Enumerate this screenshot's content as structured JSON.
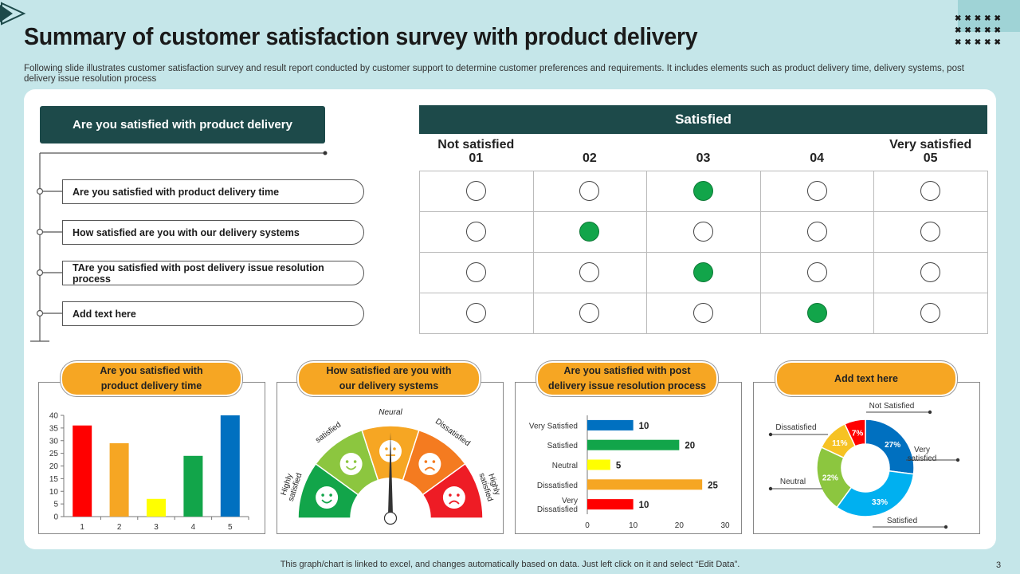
{
  "title": "Summary of customer satisfaction survey with product delivery",
  "subtitle": "Following slide illustrates customer satisfaction survey and result report conducted by customer support to determine customer preferences and requirements. It includes elements such as product delivery time, delivery systems, post delivery issue resolution process",
  "footer": "This graph/chart is linked to excel, and changes automatically based on data. Just left click on it and select “Edit Data”.",
  "page_number": "3",
  "survey": {
    "header": "Are you satisfied with product delivery",
    "questions": [
      "Are you satisfied with product delivery time",
      "How satisfied are you with our delivery systems",
      "TAre you satisfied with post delivery issue resolution process",
      "Add text here"
    ],
    "satisfied_header": "Satisfied",
    "scale": [
      {
        "label": "Not satisfied",
        "num": "01"
      },
      {
        "label": "",
        "num": "02"
      },
      {
        "label": "",
        "num": "03"
      },
      {
        "label": "",
        "num": "04"
      },
      {
        "label": "Very satisfied",
        "num": "05"
      }
    ],
    "selected": [
      3,
      2,
      3,
      4
    ],
    "selected_color": "#12a54a"
  },
  "panels": {
    "bar": {
      "pill": "Are you satisfied with\nproduct delivery time"
    },
    "gauge": {
      "pill": "How satisfied are you with\nour delivery systems"
    },
    "hbar": {
      "pill": "Are you satisfied with post\ndelivery issue resolution process"
    },
    "donut": {
      "pill": "Add text here"
    }
  },
  "chart_data": [
    {
      "type": "bar",
      "categories": [
        "1",
        "2",
        "3",
        "4",
        "5"
      ],
      "values": [
        36,
        29,
        7,
        24,
        40
      ],
      "colors": [
        "#ff0000",
        "#f6a623",
        "#ffff00",
        "#12a54a",
        "#0070c0"
      ],
      "ylim": [
        0,
        40
      ],
      "yticks": [
        0,
        5,
        10,
        15,
        20,
        25,
        30,
        35,
        40
      ]
    },
    {
      "type": "gauge",
      "segments": [
        {
          "label": "Highly satisfied",
          "color": "#12a54a",
          "face": "happy"
        },
        {
          "label": "satisfied",
          "color": "#8cc63f",
          "face": "happy"
        },
        {
          "label": "Neural",
          "color": "#f6a623",
          "face": "neutral"
        },
        {
          "label": "Dissatisfied",
          "color": "#f47b20",
          "face": "sad"
        },
        {
          "label": "Highly satisfied",
          "color": "#ee1c25",
          "face": "sad"
        }
      ],
      "needle_position": 2.5
    },
    {
      "type": "bar",
      "orientation": "horizontal",
      "categories": [
        "Very Satisfied",
        "Satisfied",
        "Neutral",
        "Dissatisfied",
        "Very\nDissatisfied"
      ],
      "values": [
        10,
        20,
        5,
        25,
        10
      ],
      "colors": [
        "#0070c0",
        "#12a54a",
        "#ffff00",
        "#f6a623",
        "#ff0000"
      ],
      "xlim": [
        0,
        30
      ],
      "xticks": [
        0,
        10,
        20,
        30
      ]
    },
    {
      "type": "pie",
      "style": "donut",
      "slices": [
        {
          "label": "Very satisfied",
          "value": 27,
          "pct": "27%",
          "color": "#0070c0"
        },
        {
          "label": "Satisfied",
          "value": 33,
          "pct": "33%",
          "color": "#00b0f0"
        },
        {
          "label": "Neutral",
          "value": 22,
          "pct": "22%",
          "color": "#8cc63f"
        },
        {
          "label": "Dissatisfied",
          "value": 11,
          "pct": "11%",
          "color": "#f6c223"
        },
        {
          "label": "Not Satisfied",
          "value": 7,
          "pct": "7%",
          "color": "#ff0000"
        }
      ]
    }
  ]
}
